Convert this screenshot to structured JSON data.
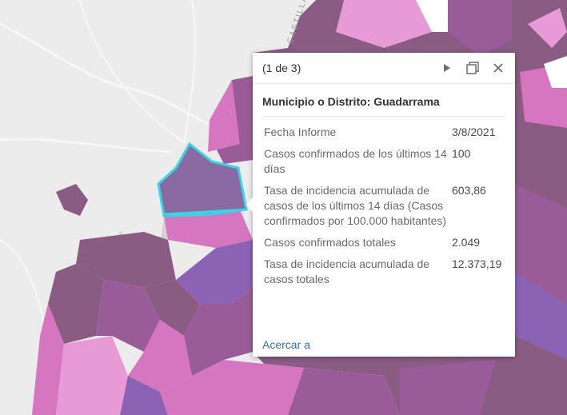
{
  "popup": {
    "pager": "(1 de 3)",
    "title": "Municipio o Distrito: Guadarrama",
    "fields": [
      {
        "name": "Fecha Informe",
        "value": "3/8/2021"
      },
      {
        "name": "Casos confirmados de los últimos 14 días",
        "value": "100"
      },
      {
        "name": "Tasa de incidencia acumulada de casos de los últimos 14 días (Casos confirmados por 100.000 habitantes)",
        "value": "603,86"
      },
      {
        "name": "Casos confirmados totales",
        "value": "2.049"
      },
      {
        "name": "Tasa de incidencia acumulada de casos totales",
        "value": "12.373,19"
      }
    ],
    "zoom_link": "Acercar a",
    "icons": {
      "next": "play-next-icon",
      "dock": "dock-window-icon",
      "close": "close-icon"
    }
  },
  "map": {
    "road_label": "CASTILLA Y LEÓN",
    "colors": {
      "base": "#ececec",
      "selection_outline": "#35d6e6",
      "dark_mauve": "#8a5c84",
      "mauve": "#9a5c98",
      "pink": "#d776c0",
      "light_pink": "#e79ad6",
      "violet": "#8c63b4"
    }
  }
}
